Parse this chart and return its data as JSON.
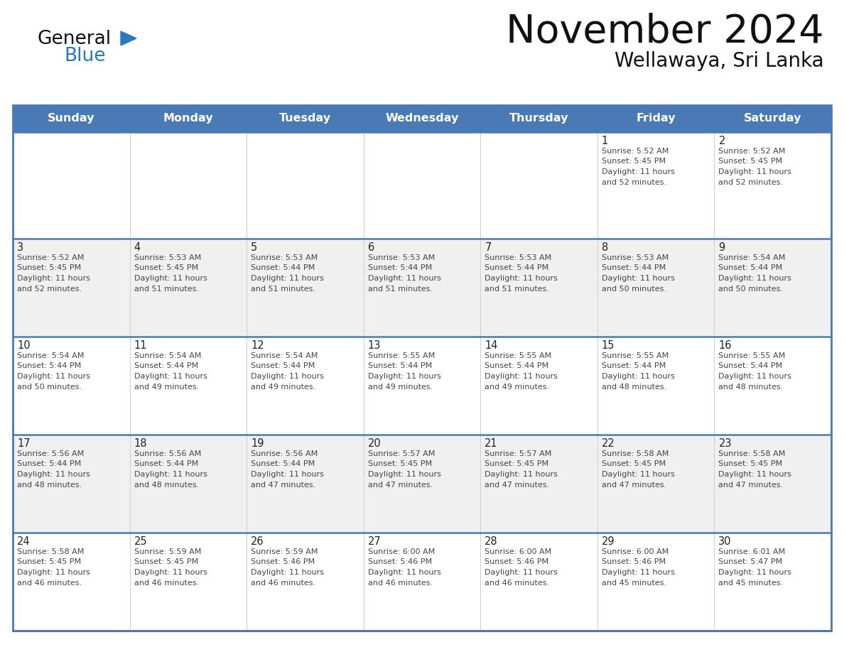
{
  "title": "November 2024",
  "subtitle": "Wellawaya, Sri Lanka",
  "days_of_week": [
    "Sunday",
    "Monday",
    "Tuesday",
    "Wednesday",
    "Thursday",
    "Friday",
    "Saturday"
  ],
  "header_bg": "#4a7ab5",
  "header_text": "#ffffff",
  "cell_bg_odd": "#f0f0f0",
  "cell_bg_even": "#ffffff",
  "border_color": "#4a7ab5",
  "inner_line_color": "#cccccc",
  "day_text_color": "#222222",
  "info_text_color": "#444444",
  "title_color": "#111111",
  "subtitle_color": "#111111",
  "logo_general_color": "#111111",
  "logo_blue_color": "#2878be",
  "logo_triangle_color": "#2878be",
  "calendar_data": [
    [
      {
        "day": "",
        "info": ""
      },
      {
        "day": "",
        "info": ""
      },
      {
        "day": "",
        "info": ""
      },
      {
        "day": "",
        "info": ""
      },
      {
        "day": "",
        "info": ""
      },
      {
        "day": "1",
        "info": "Sunrise: 5:52 AM\nSunset: 5:45 PM\nDaylight: 11 hours\nand 52 minutes."
      },
      {
        "day": "2",
        "info": "Sunrise: 5:52 AM\nSunset: 5:45 PM\nDaylight: 11 hours\nand 52 minutes."
      }
    ],
    [
      {
        "day": "3",
        "info": "Sunrise: 5:52 AM\nSunset: 5:45 PM\nDaylight: 11 hours\nand 52 minutes."
      },
      {
        "day": "4",
        "info": "Sunrise: 5:53 AM\nSunset: 5:45 PM\nDaylight: 11 hours\nand 51 minutes."
      },
      {
        "day": "5",
        "info": "Sunrise: 5:53 AM\nSunset: 5:44 PM\nDaylight: 11 hours\nand 51 minutes."
      },
      {
        "day": "6",
        "info": "Sunrise: 5:53 AM\nSunset: 5:44 PM\nDaylight: 11 hours\nand 51 minutes."
      },
      {
        "day": "7",
        "info": "Sunrise: 5:53 AM\nSunset: 5:44 PM\nDaylight: 11 hours\nand 51 minutes."
      },
      {
        "day": "8",
        "info": "Sunrise: 5:53 AM\nSunset: 5:44 PM\nDaylight: 11 hours\nand 50 minutes."
      },
      {
        "day": "9",
        "info": "Sunrise: 5:54 AM\nSunset: 5:44 PM\nDaylight: 11 hours\nand 50 minutes."
      }
    ],
    [
      {
        "day": "10",
        "info": "Sunrise: 5:54 AM\nSunset: 5:44 PM\nDaylight: 11 hours\nand 50 minutes."
      },
      {
        "day": "11",
        "info": "Sunrise: 5:54 AM\nSunset: 5:44 PM\nDaylight: 11 hours\nand 49 minutes."
      },
      {
        "day": "12",
        "info": "Sunrise: 5:54 AM\nSunset: 5:44 PM\nDaylight: 11 hours\nand 49 minutes."
      },
      {
        "day": "13",
        "info": "Sunrise: 5:55 AM\nSunset: 5:44 PM\nDaylight: 11 hours\nand 49 minutes."
      },
      {
        "day": "14",
        "info": "Sunrise: 5:55 AM\nSunset: 5:44 PM\nDaylight: 11 hours\nand 49 minutes."
      },
      {
        "day": "15",
        "info": "Sunrise: 5:55 AM\nSunset: 5:44 PM\nDaylight: 11 hours\nand 48 minutes."
      },
      {
        "day": "16",
        "info": "Sunrise: 5:55 AM\nSunset: 5:44 PM\nDaylight: 11 hours\nand 48 minutes."
      }
    ],
    [
      {
        "day": "17",
        "info": "Sunrise: 5:56 AM\nSunset: 5:44 PM\nDaylight: 11 hours\nand 48 minutes."
      },
      {
        "day": "18",
        "info": "Sunrise: 5:56 AM\nSunset: 5:44 PM\nDaylight: 11 hours\nand 48 minutes."
      },
      {
        "day": "19",
        "info": "Sunrise: 5:56 AM\nSunset: 5:44 PM\nDaylight: 11 hours\nand 47 minutes."
      },
      {
        "day": "20",
        "info": "Sunrise: 5:57 AM\nSunset: 5:45 PM\nDaylight: 11 hours\nand 47 minutes."
      },
      {
        "day": "21",
        "info": "Sunrise: 5:57 AM\nSunset: 5:45 PM\nDaylight: 11 hours\nand 47 minutes."
      },
      {
        "day": "22",
        "info": "Sunrise: 5:58 AM\nSunset: 5:45 PM\nDaylight: 11 hours\nand 47 minutes."
      },
      {
        "day": "23",
        "info": "Sunrise: 5:58 AM\nSunset: 5:45 PM\nDaylight: 11 hours\nand 47 minutes."
      }
    ],
    [
      {
        "day": "24",
        "info": "Sunrise: 5:58 AM\nSunset: 5:45 PM\nDaylight: 11 hours\nand 46 minutes."
      },
      {
        "day": "25",
        "info": "Sunrise: 5:59 AM\nSunset: 5:45 PM\nDaylight: 11 hours\nand 46 minutes."
      },
      {
        "day": "26",
        "info": "Sunrise: 5:59 AM\nSunset: 5:46 PM\nDaylight: 11 hours\nand 46 minutes."
      },
      {
        "day": "27",
        "info": "Sunrise: 6:00 AM\nSunset: 5:46 PM\nDaylight: 11 hours\nand 46 minutes."
      },
      {
        "day": "28",
        "info": "Sunrise: 6:00 AM\nSunset: 5:46 PM\nDaylight: 11 hours\nand 46 minutes."
      },
      {
        "day": "29",
        "info": "Sunrise: 6:00 AM\nSunset: 5:46 PM\nDaylight: 11 hours\nand 45 minutes."
      },
      {
        "day": "30",
        "info": "Sunrise: 6:01 AM\nSunset: 5:47 PM\nDaylight: 11 hours\nand 45 minutes."
      }
    ]
  ]
}
